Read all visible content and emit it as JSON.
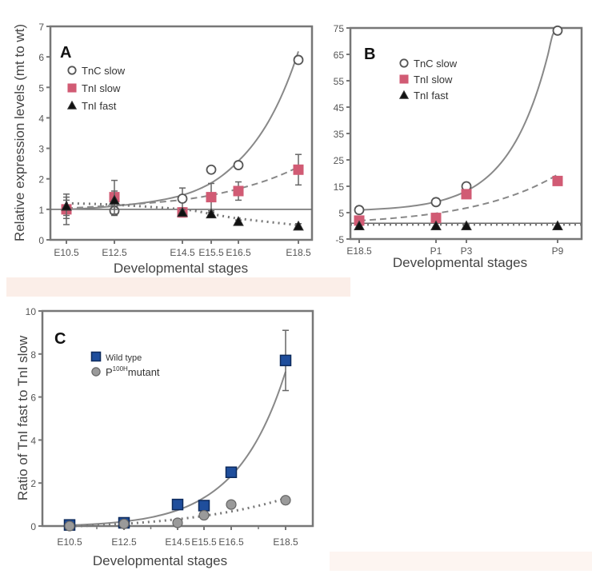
{
  "chart_data": [
    {
      "type": "line",
      "panel_label": "A",
      "title": "",
      "xlabel": "Developmental stages",
      "ylabel": "Relative expression levels (mt to wt)",
      "categories": [
        "E10.5",
        "E12.5",
        "E14.5",
        "E15.5",
        "E16.5",
        "E18.5"
      ],
      "x_positions": [
        10.5,
        12.5,
        14.5,
        15.5,
        16.5,
        18.5
      ],
      "ylim": [
        0,
        7
      ],
      "yticks": [
        0,
        1,
        2,
        3,
        4,
        5,
        6,
        7
      ],
      "reference_line": 1,
      "legend_position": "top-left",
      "series": [
        {
          "name": "TnC slow",
          "marker": "open-circle",
          "line": "solid-fit",
          "values": [
            1.0,
            0.95,
            1.35,
            2.3,
            2.45,
            5.9
          ],
          "errors": [
            0.3,
            0.15,
            0.35,
            0.1,
            0.1,
            0.05
          ]
        },
        {
          "name": "TnI slow",
          "marker": "square",
          "color": "#d15b74",
          "line": "dashed-fit",
          "values": [
            1.0,
            1.4,
            0.9,
            1.4,
            1.6,
            2.3
          ],
          "errors": [
            0.5,
            0.55,
            0.15,
            0.45,
            0.3,
            0.5
          ]
        },
        {
          "name": "TnI fast",
          "marker": "triangle",
          "color": "#111111",
          "line": "dotted-fit",
          "values": [
            1.1,
            1.3,
            0.9,
            0.85,
            0.6,
            0.45
          ],
          "errors": [
            0.3,
            0.3,
            0.1,
            0.05,
            0.05,
            0.08
          ]
        }
      ]
    },
    {
      "type": "line",
      "panel_label": "B",
      "title": "",
      "xlabel": "Developmental stages",
      "ylabel": "",
      "categories": [
        "E18.5",
        "P1",
        "P3",
        "P9"
      ],
      "x_positions": [
        0,
        2.5,
        3.5,
        6.5
      ],
      "ylim": [
        -5,
        75
      ],
      "yticks": [
        -5,
        5,
        15,
        25,
        35,
        45,
        55,
        65,
        75
      ],
      "reference_line": 1,
      "legend_position": "top-left",
      "series": [
        {
          "name": "TnC slow",
          "marker": "open-circle",
          "line": "solid-fit",
          "values": [
            6,
            9,
            15,
            74
          ]
        },
        {
          "name": "TnI slow",
          "marker": "square",
          "color": "#d15b74",
          "line": "dashed-fit",
          "values": [
            2,
            3,
            12,
            17
          ]
        },
        {
          "name": "TnI fast",
          "marker": "triangle",
          "color": "#111111",
          "line": "dotted-fit",
          "values": [
            0,
            0,
            0,
            0
          ]
        }
      ]
    },
    {
      "type": "scatter",
      "panel_label": "C",
      "title": "",
      "xlabel": "Developmental stages",
      "ylabel": "Ratio of TnI fast to TnI slow",
      "categories": [
        "E10.5",
        "E12.5",
        "E14.5",
        "E15.5",
        "E16.5",
        "E18.5"
      ],
      "x_positions": [
        10.5,
        12.5,
        14.5,
        15.5,
        16.5,
        18.5
      ],
      "ylim": [
        0,
        10
      ],
      "yticks": [
        0,
        2,
        4,
        6,
        8,
        10
      ],
      "legend_position": "top-left",
      "series": [
        {
          "name": "Wild type",
          "marker": "square",
          "color": "#1f4e9c",
          "line": "solid-fit",
          "values": [
            0.05,
            0.15,
            1.0,
            0.95,
            2.5,
            7.7
          ],
          "errors": [
            0,
            0,
            0,
            0,
            0,
            1.4
          ]
        },
        {
          "name": "P100H mutant",
          "name_base": "P",
          "name_sup": "100H",
          "name_suffix": "mutant",
          "marker": "circle",
          "color": "#9a9a9a",
          "line": "dotted-fit",
          "values": [
            0.0,
            0.1,
            0.15,
            0.5,
            1.0,
            1.2
          ]
        }
      ]
    }
  ]
}
